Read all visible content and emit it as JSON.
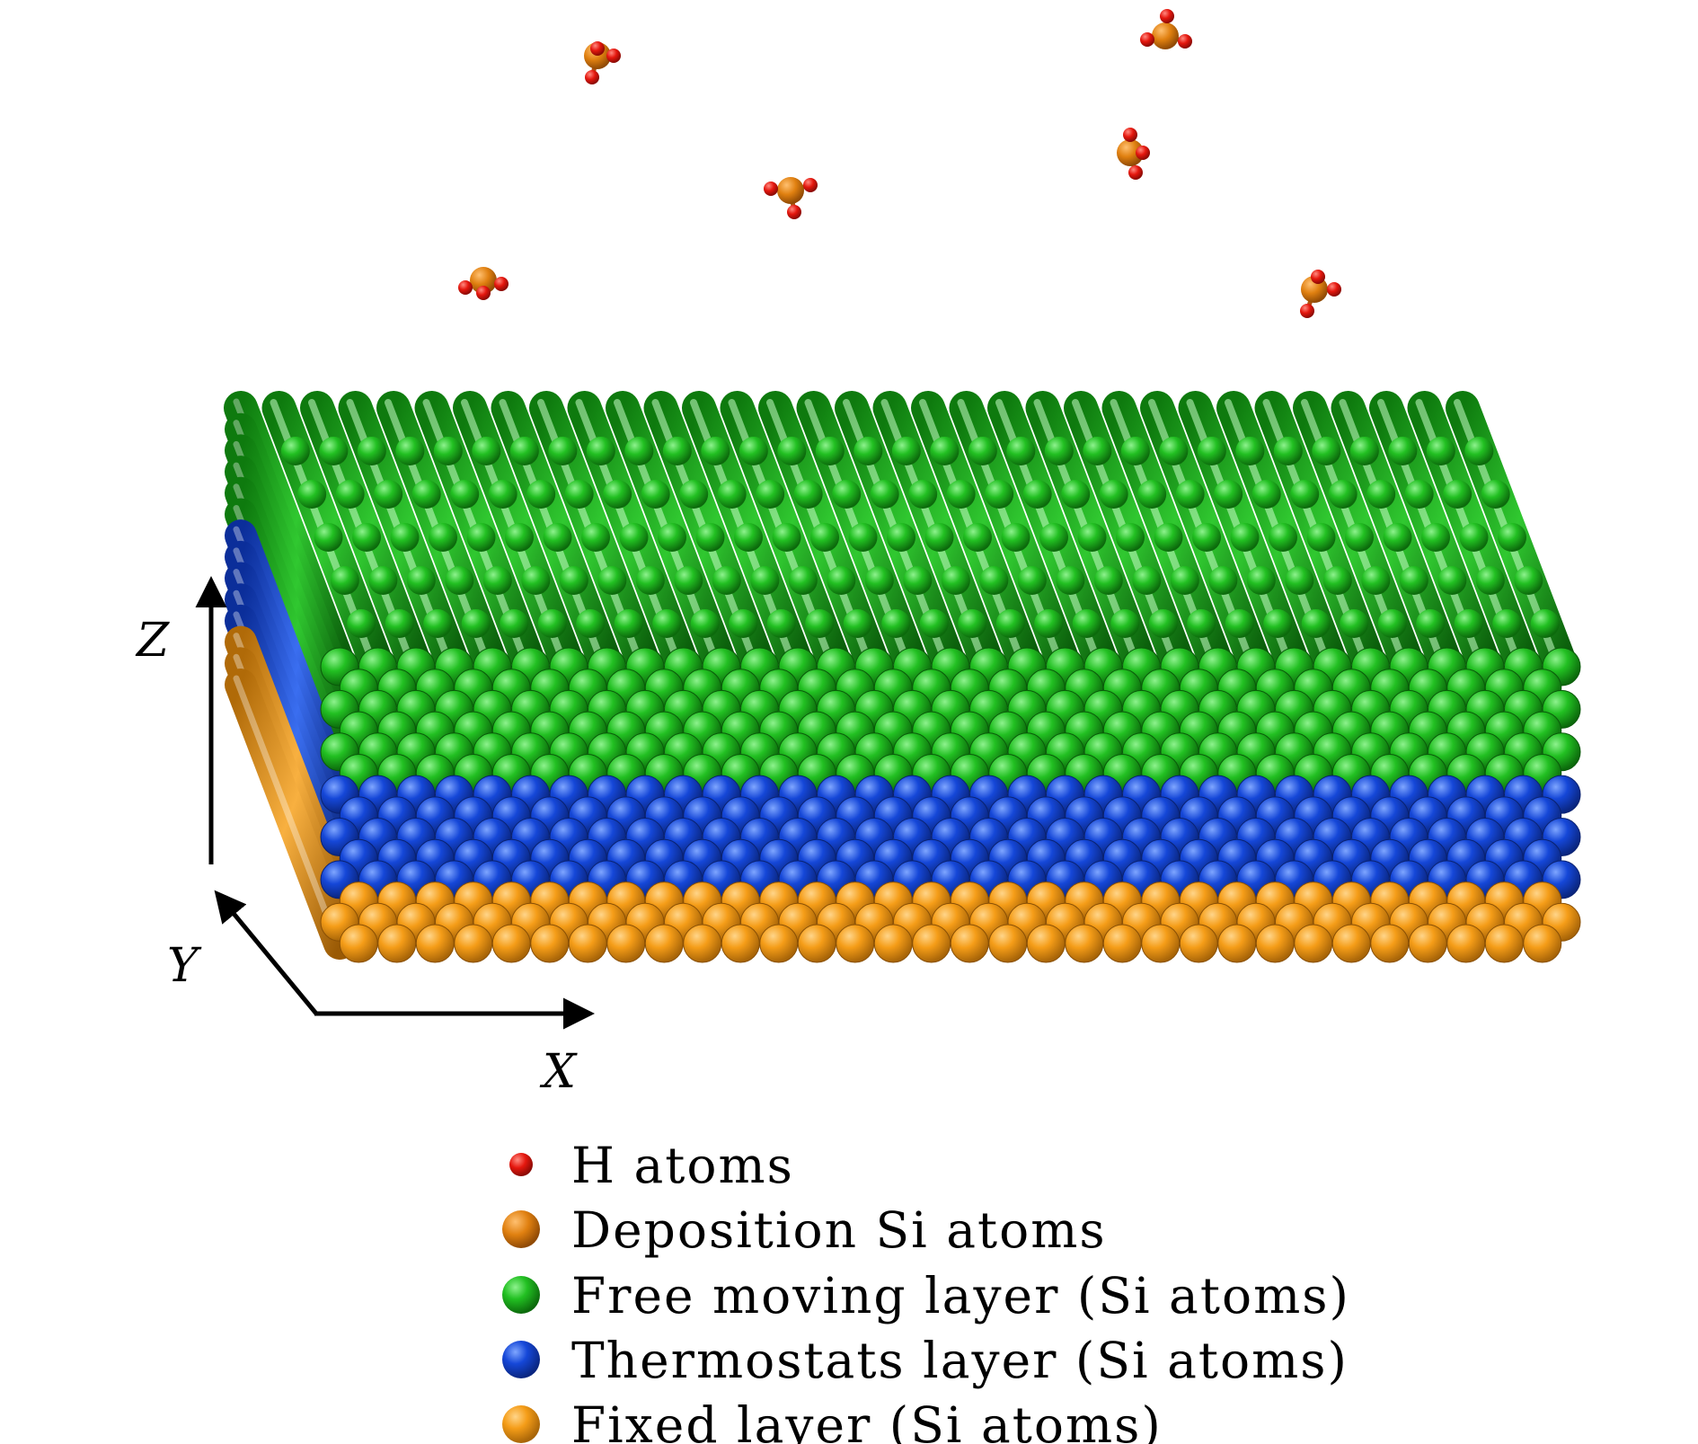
{
  "colors": {
    "h_atom": "#e5170e",
    "deposition_si": "#e08010",
    "free_moving": "#1fb81f",
    "thermostat": "#1447d6",
    "fixed": "#f59d18",
    "axis": "#000000"
  },
  "axes": {
    "z": "Z",
    "y": "Y",
    "x": "X"
  },
  "slab": {
    "layers": [
      {
        "name": "free-moving",
        "color_key": "free_moving",
        "rows": 6
      },
      {
        "name": "thermostat",
        "color_key": "thermostat",
        "rows": 5
      },
      {
        "name": "fixed",
        "color_key": "fixed",
        "rows": 3
      }
    ],
    "columns": 33,
    "depth_tubes": 6
  },
  "molecules": [
    {
      "id": "molecule-1",
      "orientation": "up-right"
    },
    {
      "id": "molecule-2",
      "orientation": "top"
    },
    {
      "id": "molecule-3",
      "orientation": "right"
    },
    {
      "id": "molecule-4",
      "orientation": "down"
    },
    {
      "id": "molecule-5",
      "orientation": "left"
    },
    {
      "id": "molecule-6",
      "orientation": "right-down"
    }
  ],
  "legend": {
    "items": [
      {
        "label": "H atoms",
        "color_key": "h_atom",
        "marker": "small"
      },
      {
        "label": "Deposition Si atoms",
        "color_key": "deposition_si",
        "marker": "large"
      },
      {
        "label": "Free moving layer (Si atoms)",
        "color_key": "free_moving",
        "marker": "large"
      },
      {
        "label": "Thermostats layer (Si atoms)",
        "color_key": "thermostat",
        "marker": "large"
      },
      {
        "label": "Fixed layer (Si atoms)",
        "color_key": "fixed",
        "marker": "large"
      }
    ]
  }
}
